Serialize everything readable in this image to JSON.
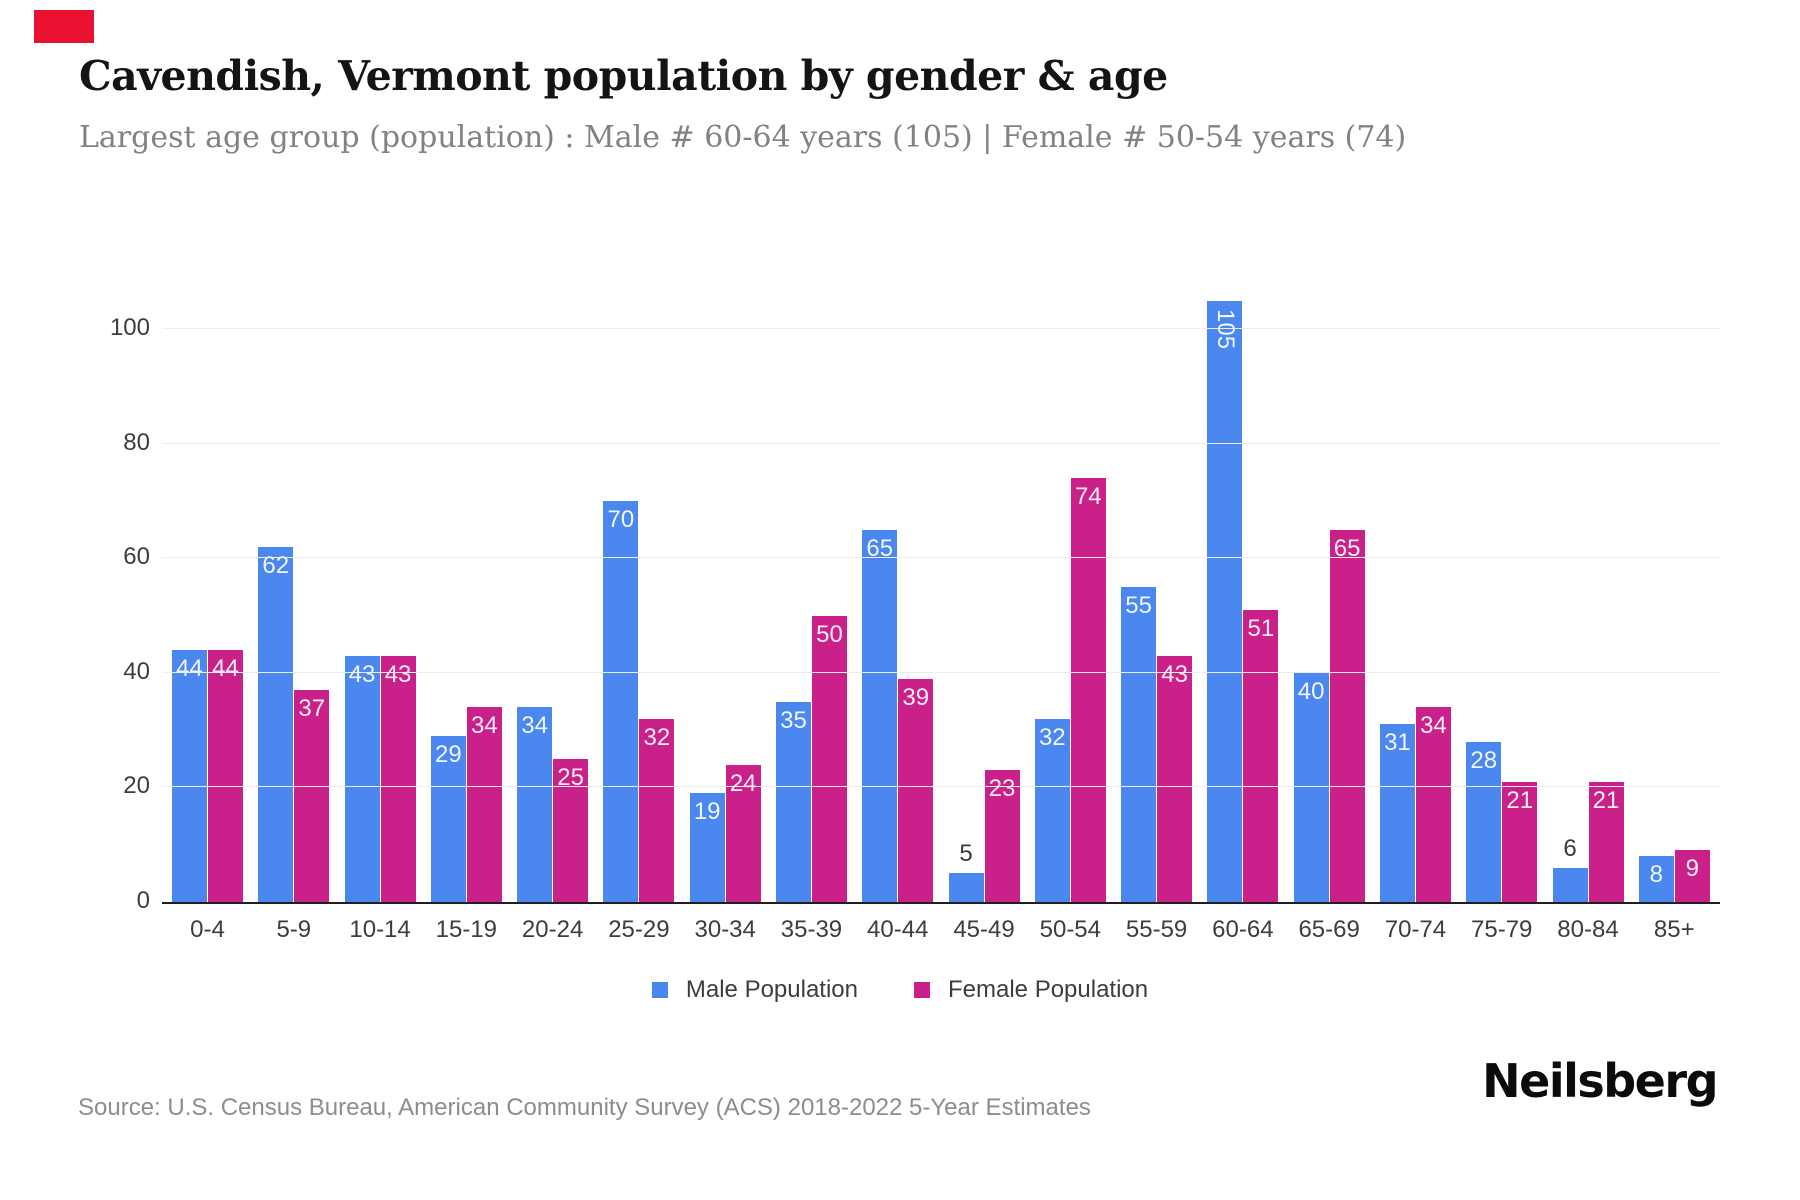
{
  "brand": {
    "logo_text": "Neilsberg",
    "accent_color": "#e9112f"
  },
  "header": {
    "title": "Cavendish, Vermont population by gender & age",
    "subtitle": "Largest age group (population) : Male # 60-64 years (105) | Female # 50-54 years (74)"
  },
  "chart_data": {
    "type": "bar",
    "categories": [
      "0-4",
      "5-9",
      "10-14",
      "15-19",
      "20-24",
      "25-29",
      "30-34",
      "35-39",
      "40-44",
      "45-49",
      "50-54",
      "55-59",
      "60-64",
      "65-69",
      "70-74",
      "75-79",
      "80-84",
      "85+"
    ],
    "series": [
      {
        "name": "Male Population",
        "color": "#4a87ee",
        "values": [
          44,
          62,
          43,
          29,
          34,
          70,
          19,
          35,
          65,
          5,
          32,
          55,
          105,
          40,
          31,
          28,
          6,
          8
        ]
      },
      {
        "name": "Female Population",
        "color": "#ca2089",
        "values": [
          44,
          37,
          43,
          34,
          25,
          32,
          24,
          50,
          39,
          23,
          74,
          43,
          51,
          65,
          34,
          21,
          21,
          9
        ]
      }
    ],
    "title": "Cavendish, Vermont population by gender & age",
    "xlabel": "",
    "ylabel": "",
    "ylim": [
      0,
      110
    ],
    "yticks": [
      0,
      20,
      40,
      60,
      80,
      100
    ],
    "grid": true,
    "legend_position": "bottom",
    "colors": {
      "gridline": "#ededed",
      "axis_line": "#1f1f1f",
      "tick_label": "#3d3d3d",
      "bar_label_inside": "#ffffff",
      "bar_label_above": "#3a3a3a"
    }
  },
  "footer": {
    "source": "Source: U.S. Census Bureau, American Community Survey (ACS) 2018-2022 5-Year Estimates"
  }
}
